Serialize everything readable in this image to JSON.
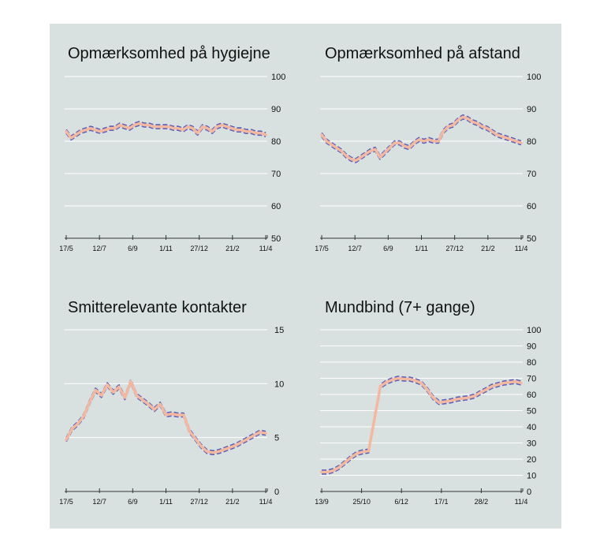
{
  "colors": {
    "background": "#d8e1df",
    "band": "#5a5fb8",
    "line": "#f4b8a0",
    "grid": "#ffffff"
  },
  "chart_data": [
    {
      "type": "line",
      "title": "Opmærksomhed på hygiejne",
      "ylim": [
        50,
        100
      ],
      "yticks": [
        50,
        60,
        70,
        80,
        90,
        100
      ],
      "xticks": [
        "17/5",
        "12/7",
        "6/9",
        "1/11",
        "27/12",
        "21/2",
        "11/4"
      ],
      "grid": true,
      "series": [
        {
          "values": [
            83,
            81,
            82,
            83,
            83.5,
            84,
            83.5,
            83,
            83.5,
            84,
            84,
            85,
            84.5,
            84,
            85,
            85.5,
            85,
            85,
            84.5,
            84.5,
            84.5,
            84.5,
            84,
            84,
            83.5,
            84.5,
            84,
            82.5,
            84.5,
            84,
            83,
            84.5,
            85,
            84.5,
            84,
            83.5,
            83.5,
            83,
            83,
            82.5,
            82.5,
            82
          ]
        }
      ]
    },
    {
      "type": "line",
      "title": "Opmærksomhed på afstand",
      "ylim": [
        50,
        100
      ],
      "yticks": [
        50,
        60,
        70,
        80,
        90,
        100
      ],
      "xticks": [
        "17/5",
        "12/7",
        "6/9",
        "1/11",
        "27/12",
        "21/2",
        "11/4"
      ],
      "grid": true,
      "series": [
        {
          "values": [
            82,
            80,
            79,
            78,
            77,
            75.5,
            74.5,
            74,
            75,
            76,
            77,
            77.5,
            75,
            76.5,
            78,
            79.5,
            79.5,
            78.5,
            78,
            79.5,
            80.5,
            80,
            80.5,
            80,
            80,
            83,
            84.5,
            85,
            86.5,
            87.5,
            87,
            86,
            85.5,
            84.5,
            84,
            83,
            82,
            81.5,
            81,
            80.5,
            80,
            79.5
          ]
        }
      ]
    },
    {
      "type": "line",
      "title": "Smitterelevante kontakter",
      "ylim": [
        0,
        15
      ],
      "yticks": [
        0,
        5,
        10,
        15
      ],
      "xticks": [
        "17/5",
        "12/7",
        "6/9",
        "1/11",
        "27/12",
        "21/2",
        "11/4"
      ],
      "grid": true,
      "series": [
        {
          "values": [
            4.8,
            5.8,
            6.3,
            7,
            8.3,
            9.4,
            8.9,
            9.9,
            9.2,
            9.7,
            8.7,
            10.2,
            8.9,
            8.5,
            8.1,
            7.6,
            8.1,
            7.1,
            7.2,
            7.1,
            7.1,
            5.6,
            4.9,
            4.2,
            3.7,
            3.6,
            3.7,
            3.9,
            4.1,
            4.3,
            4.6,
            4.9,
            5.2,
            5.5,
            5.4
          ]
        }
      ]
    },
    {
      "type": "line",
      "title": "Mundbind (7+ gange)",
      "ylim": [
        0,
        100
      ],
      "yticks": [
        0,
        10,
        20,
        30,
        40,
        50,
        60,
        70,
        80,
        90,
        100
      ],
      "xticks": [
        "13/9",
        "25/10",
        "6/12",
        "17/1",
        "28/2",
        "11/4"
      ],
      "grid": true,
      "series": [
        {
          "values": [
            12,
            12,
            13,
            15,
            18,
            21,
            23.5,
            24.5,
            25,
            45,
            65,
            67.5,
            69,
            70,
            69.5,
            69.5,
            68.5,
            67,
            63,
            58,
            55,
            55.5,
            56,
            57,
            57.5,
            58,
            59,
            61,
            63,
            65,
            66,
            67,
            67.5,
            68,
            67
          ]
        }
      ]
    }
  ]
}
